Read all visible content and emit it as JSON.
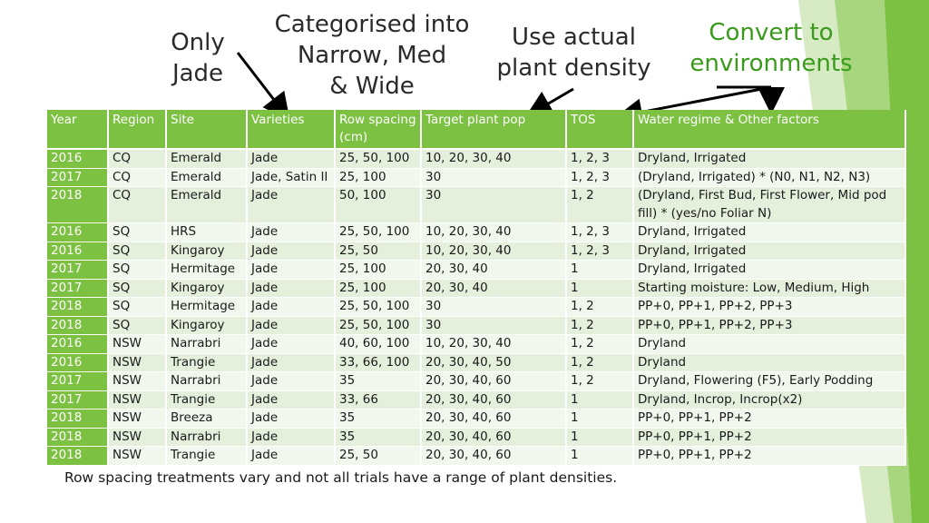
{
  "annotations": {
    "only_jade": "Only\nJade",
    "categorised": "Categorised into\nNarrow, Med\n& Wide",
    "plant_density": "Use actual\nplant density",
    "convert_env": "Convert to\nenvironments"
  },
  "table": {
    "headers": [
      "Year",
      "Region",
      "Site",
      "Varieties",
      "Row spacing (cm)",
      "Target plant pop",
      "TOS",
      "Water regime & Other factors"
    ],
    "rows": [
      [
        "2016",
        "CQ",
        "Emerald",
        "Jade",
        "25, 50, 100",
        "10, 20, 30, 40",
        "1, 2, 3",
        "Dryland, Irrigated"
      ],
      [
        "2017",
        "CQ",
        "Emerald",
        "Jade, Satin II",
        "25, 100",
        "30",
        "1, 2, 3",
        "(Dryland, Irrigated) * (N0, N1, N2, N3)"
      ],
      [
        "2018",
        "CQ",
        "Emerald",
        "Jade",
        "50, 100",
        "30",
        "1, 2",
        "(Dryland, First Bud, First Flower, Mid pod fill) * (yes/no Foliar N)"
      ],
      [
        "2016",
        "SQ",
        "HRS",
        "Jade",
        "25, 50, 100",
        "10, 20, 30, 40",
        "1, 2, 3",
        "Dryland, Irrigated"
      ],
      [
        "2016",
        "SQ",
        "Kingaroy",
        "Jade",
        "25, 50",
        "10, 20, 30, 40",
        "1, 2, 3",
        "Dryland, Irrigated"
      ],
      [
        "2017",
        "SQ",
        "Hermitage",
        "Jade",
        "25, 100",
        "20, 30, 40",
        "1",
        "Dryland, Irrigated"
      ],
      [
        "2017",
        "SQ",
        "Kingaroy",
        "Jade",
        "25, 100",
        "20, 30, 40",
        "1",
        "Starting moisture: Low, Medium, High"
      ],
      [
        "2018",
        "SQ",
        "Hermitage",
        "Jade",
        "25, 50, 100",
        "30",
        "1, 2",
        "PP+0, PP+1, PP+2, PP+3"
      ],
      [
        "2018",
        "SQ",
        "Kingaroy",
        "Jade",
        "25, 50, 100",
        "30",
        "1, 2",
        "PP+0, PP+1, PP+2, PP+3"
      ],
      [
        "2016",
        "NSW",
        "Narrabri",
        "Jade",
        "40, 60, 100",
        "10, 20, 30, 40",
        "1, 2",
        "Dryland"
      ],
      [
        "2016",
        "NSW",
        "Trangie",
        "Jade",
        "33, 66, 100",
        "20, 30, 40, 50",
        "1, 2",
        "Dryland"
      ],
      [
        "2017",
        "NSW",
        "Narrabri",
        "Jade",
        "35",
        "20, 30, 40, 60",
        "1, 2",
        "Dryland, Flowering (F5), Early Podding"
      ],
      [
        "2017",
        "NSW",
        "Trangie",
        "Jade",
        "33, 66",
        "20, 30, 40, 60",
        "1",
        "Dryland, Incrop, Incrop(x2)"
      ],
      [
        "2018",
        "NSW",
        "Breeza",
        "Jade",
        "35",
        "20, 30, 40, 60",
        "1",
        "PP+0, PP+1, PP+2"
      ],
      [
        "2018",
        "NSW",
        "Narrabri",
        "Jade",
        "35",
        "20, 30, 40, 60",
        "1",
        "PP+0, PP+1, PP+2"
      ],
      [
        "2018",
        "NSW",
        "Trangie",
        "Jade",
        "25, 50",
        "20, 30, 40, 60",
        "1",
        "PP+0, PP+1, PP+2"
      ]
    ]
  },
  "caption": "Row spacing treatments vary and not all trials have a range of plant densities.",
  "colors": {
    "header_green": "#7cc142",
    "row_light": "#e4efdc",
    "row_lighter": "#f2f7ee",
    "accent_text": "#3a9a1c"
  }
}
